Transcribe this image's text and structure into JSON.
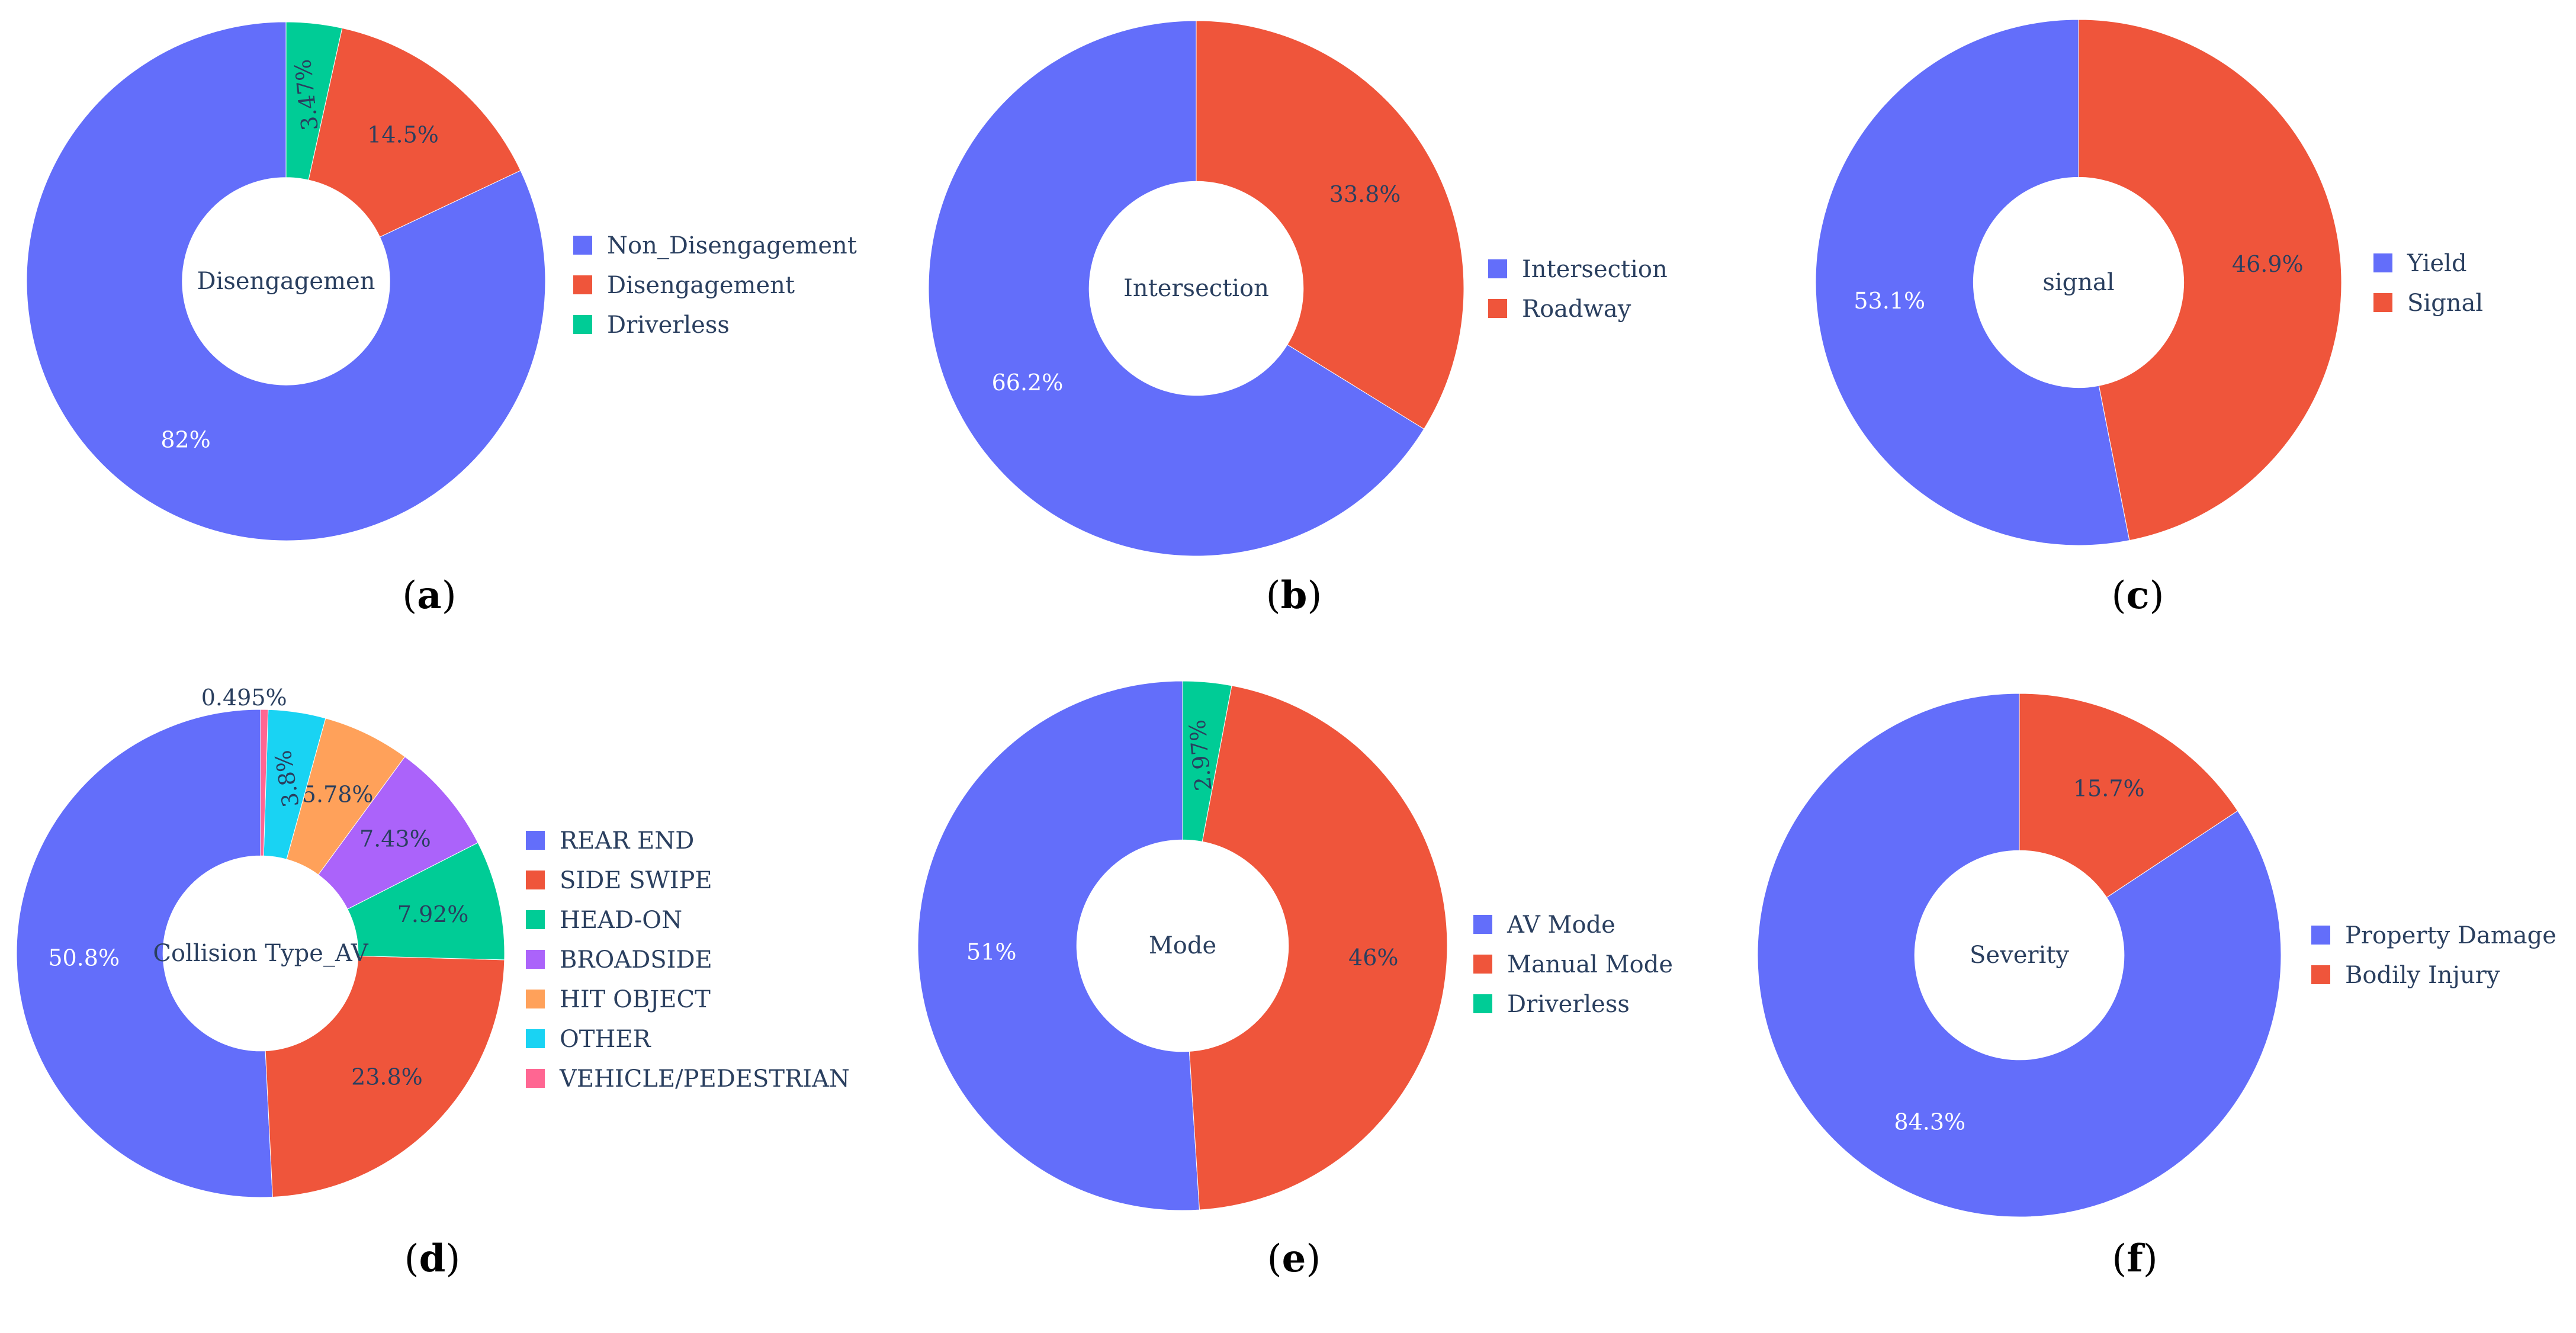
{
  "colors": {
    "blue": "#636efa",
    "red": "#ef553b",
    "green": "#00cc96",
    "purple": "#ab63fa",
    "orange": "#ffa15a",
    "cyan": "#19d3f3",
    "pink": "#ff6692",
    "text_dark": "#2a3f5f"
  },
  "chart_data": [
    {
      "type": "pie",
      "hole": true,
      "center_label": "Disengagemen",
      "caption": "a",
      "labels": [
        "Non_Disengagement",
        "Disengagement",
        "Driverless"
      ],
      "values": [
        82,
        14.5,
        3.47
      ],
      "display": [
        "82%",
        "14.5%",
        "3.47%"
      ],
      "colors": [
        "#636efa",
        "#ef553b",
        "#00cc96"
      ],
      "legend": [
        "Non_Disengagement",
        "Disengagement",
        "Driverless"
      ]
    },
    {
      "type": "pie",
      "hole": true,
      "center_label": "Intersection",
      "caption": "b",
      "labels": [
        "Intersection",
        "Roadway"
      ],
      "values": [
        66.2,
        33.8
      ],
      "display": [
        "66.2%",
        "33.8%"
      ],
      "colors": [
        "#636efa",
        "#ef553b"
      ],
      "legend": [
        "Intersection",
        "Roadway"
      ]
    },
    {
      "type": "pie",
      "hole": true,
      "center_label": "signal",
      "caption": "c",
      "labels": [
        "Yield",
        "Signal"
      ],
      "values": [
        53.1,
        46.9
      ],
      "display": [
        "53.1%",
        "46.9%"
      ],
      "colors": [
        "#636efa",
        "#ef553b"
      ],
      "legend": [
        "Yield",
        "Signal"
      ]
    },
    {
      "type": "pie",
      "hole": true,
      "center_label": "Collision Type_AV",
      "caption": "d",
      "labels": [
        "REAR END",
        "SIDE SWIPE",
        "HEAD-ON",
        "BROADSIDE",
        "HIT OBJECT",
        "OTHER",
        "VEHICLE/PEDESTRIAN"
      ],
      "values": [
        50.8,
        23.8,
        7.92,
        7.43,
        5.78,
        3.8,
        0.495
      ],
      "display": [
        "50.8%",
        "23.8%",
        "7.92%",
        "7.43%",
        "5.78%",
        "3.8%",
        "0.495%"
      ],
      "colors": [
        "#636efa",
        "#ef553b",
        "#00cc96",
        "#ab63fa",
        "#ffa15a",
        "#19d3f3",
        "#ff6692"
      ],
      "legend": [
        "REAR END",
        "SIDE SWIPE",
        "HEAD-ON",
        "BROADSIDE",
        "HIT OBJECT",
        "OTHER",
        "VEHICLE/PEDESTRIAN"
      ]
    },
    {
      "type": "pie",
      "hole": true,
      "center_label": "Mode",
      "caption": "e",
      "labels": [
        "AV Mode",
        "Manual Mode",
        "Driverless"
      ],
      "values": [
        51,
        46,
        2.97
      ],
      "display": [
        "51%",
        "46%",
        "2.97%"
      ],
      "colors": [
        "#636efa",
        "#ef553b",
        "#00cc96"
      ],
      "legend": [
        "AV Mode",
        "Manual Mode",
        "Driverless"
      ]
    },
    {
      "type": "pie",
      "hole": true,
      "center_label": "Severity",
      "caption": "f",
      "labels": [
        "Property Damage",
        "Bodily Injury"
      ],
      "values": [
        84.3,
        15.7
      ],
      "display": [
        "84.3%",
        "15.7%"
      ],
      "colors": [
        "#636efa",
        "#ef553b"
      ],
      "legend": [
        "Property Damage",
        "Bodily Injury"
      ]
    }
  ]
}
